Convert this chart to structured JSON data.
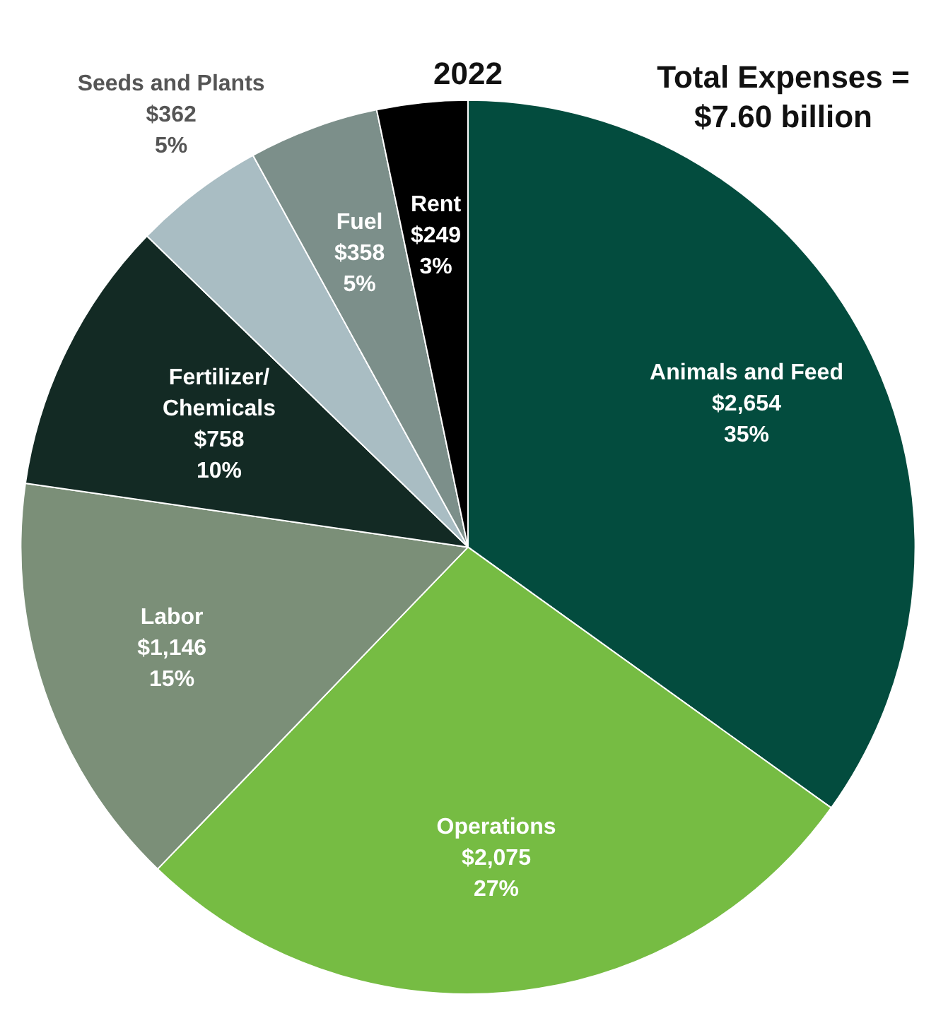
{
  "chart_data": {
    "type": "pie",
    "title": "2022",
    "annotations": [
      "Total Expenses =\n$7.60 billion"
    ],
    "categories": [
      "Animals and Feed",
      "Operations",
      "Labor",
      "Fertilizer/ Chemicals",
      "Seeds and Plants",
      "Fuel",
      "Rent"
    ],
    "values": [
      2654,
      2075,
      1146,
      758,
      362,
      358,
      249
    ],
    "value_labels": [
      "$2,654\n35%",
      "$2,075\n27%",
      "$1,146\n15%",
      "$758\n10%",
      "$362\n5%",
      "$358\n5%",
      "$249\n3%"
    ],
    "colors": [
      "#034c3e",
      "#76bc43",
      "#7b8f78",
      "#132a24",
      "#a9bdc3",
      "#7c8f8a",
      "#000000"
    ],
    "legend": false
  }
}
